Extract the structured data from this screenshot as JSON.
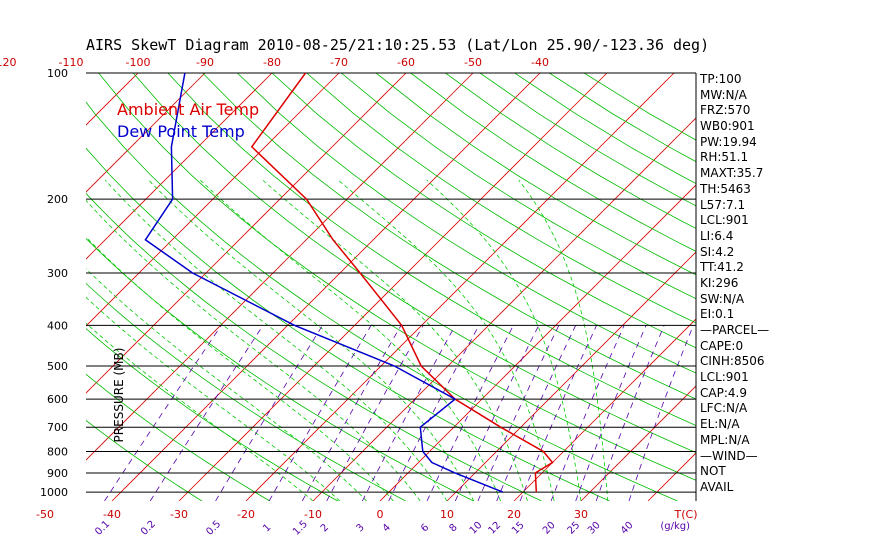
{
  "title": "AIRS SkewT Diagram 2010-08-25/21:10:25.53 (Lat/Lon 25.90/-123.36 deg)",
  "chart_data": {
    "type": "line",
    "ylabel": "PRESSURE (MB)",
    "y_log_scale": true,
    "ylim_mb": [
      1050,
      100
    ],
    "pressure_ticks": [
      100,
      200,
      300,
      400,
      500,
      600,
      700,
      800,
      900,
      1000
    ],
    "pressure_ticks_labels": [
      "100",
      "200",
      "300",
      "400",
      "500",
      "600",
      "700",
      "800",
      "900",
      "1000"
    ],
    "bottom_temp_ticks": [
      -50,
      -40,
      -30,
      -20,
      -10,
      0,
      10,
      20,
      30
    ],
    "bottom_temp_labels": [
      "-50",
      "-40",
      "-30",
      "-20",
      "-10",
      "0",
      "10",
      "20",
      "30"
    ],
    "bottom_temp_unit": "T(C)",
    "top_temp_ticks": [
      -120,
      -110,
      -100,
      -90,
      -80,
      -70,
      -60,
      -50,
      -40
    ],
    "top_temp_labels": [
      "-120",
      "-110",
      "-100",
      "-90",
      "-80",
      "-70",
      "-60",
      "-50",
      "-40"
    ],
    "mixing_ratio_labels": [
      "0.1",
      "0.2",
      "0.5",
      "1",
      "1.5",
      "2",
      "3",
      "4",
      "6",
      "8",
      "10",
      "12",
      "15",
      "20",
      "25",
      "30",
      "40"
    ],
    "mixing_ratio_unit": "(g/kg)",
    "grid": true,
    "background_lines": [
      "isotherms",
      "dry adiabats",
      "moist adiabats",
      "mixing ratio lines"
    ],
    "legend_position": "top-left",
    "series": [
      {
        "name": "Ambient Air Temp",
        "color": "#dd0000",
        "pressure_mb": [
          100,
          150,
          200,
          250,
          300,
          400,
          500,
          600,
          700,
          800,
          850,
          900,
          1000
        ],
        "temp_c": [
          -75,
          -72,
          -56,
          -46,
          -37,
          -23,
          -14,
          -4,
          7,
          17,
          20,
          19,
          22
        ]
      },
      {
        "name": "Dew Point Temp",
        "color": "#0000cc",
        "pressure_mb": [
          100,
          150,
          200,
          250,
          300,
          400,
          500,
          600,
          700,
          800,
          850,
          900,
          1000
        ],
        "temp_c": [
          -93,
          -84,
          -76,
          -74,
          -62,
          -39,
          -18,
          -4,
          -5,
          -1,
          2,
          7,
          17
        ]
      }
    ],
    "colors": {
      "isotherm": "#dd0000",
      "dry_adiabat": "#00bb00",
      "moist_adiabat": "#00cc00",
      "mixing_ratio": "#5500aa",
      "pressure_line": "#000000"
    }
  },
  "legend": {
    "air_temp": "Ambient Air Temp",
    "dew_point": "Dew Point Temp"
  },
  "stats": [
    "TP:100",
    "MW:N/A",
    "FRZ:570",
    "WB0:901",
    "PW:19.94",
    "RH:51.1",
    "MAXT:35.7",
    "TH:5463",
    "L57:7.1",
    "LCL:901",
    "LI:6.4",
    "SI:4.2",
    "TT:41.2",
    "KI:296",
    "SW:N/A",
    "EI:0.1",
    "—PARCEL—",
    "CAPE:0",
    "CINH:8506",
    "LCL:901",
    "CAP:4.9",
    "LFC:N/A",
    "EL:N/A",
    "MPL:N/A",
    "—WIND—",
    "NOT",
    "AVAIL"
  ]
}
